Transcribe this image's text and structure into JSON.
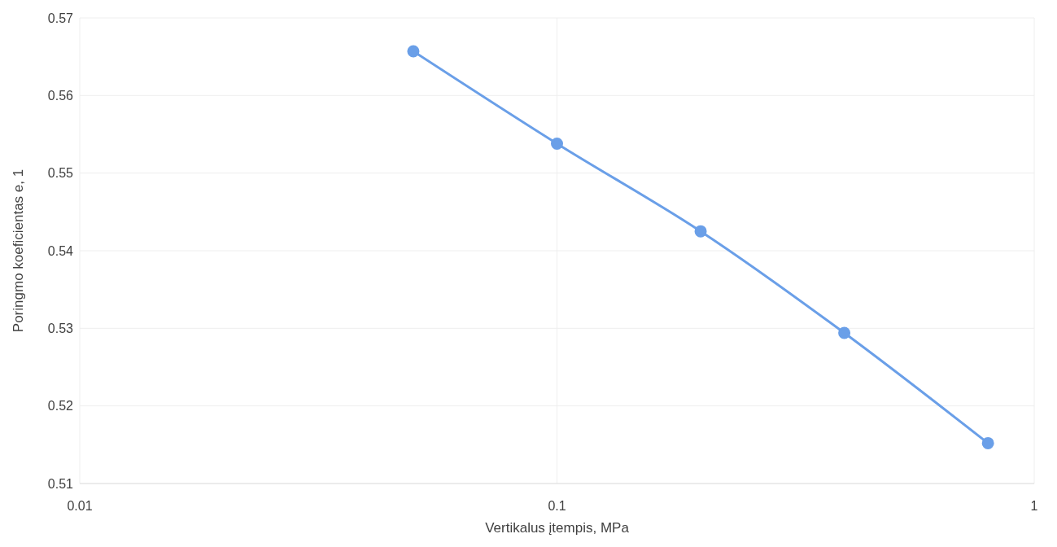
{
  "chart_data": {
    "type": "line",
    "xlabel": "Vertikalus įtempis, MPa",
    "ylabel": "Poringmo koeficientas e, 1",
    "x": [
      0.05,
      0.1,
      0.2,
      0.4,
      0.8
    ],
    "values": [
      0.5657,
      0.5538,
      0.5425,
      0.5294,
      0.5152
    ],
    "color": "#6a9fe8",
    "marker": "circle",
    "log": "x",
    "grid": true,
    "xlim": [
      0.01,
      1
    ],
    "xticks": [
      0.01,
      0.1,
      1
    ],
    "ylim": [
      0.51,
      0.57
    ],
    "yticks": [
      0.51,
      0.52,
      0.53,
      0.54,
      0.55,
      0.56,
      0.57
    ]
  }
}
